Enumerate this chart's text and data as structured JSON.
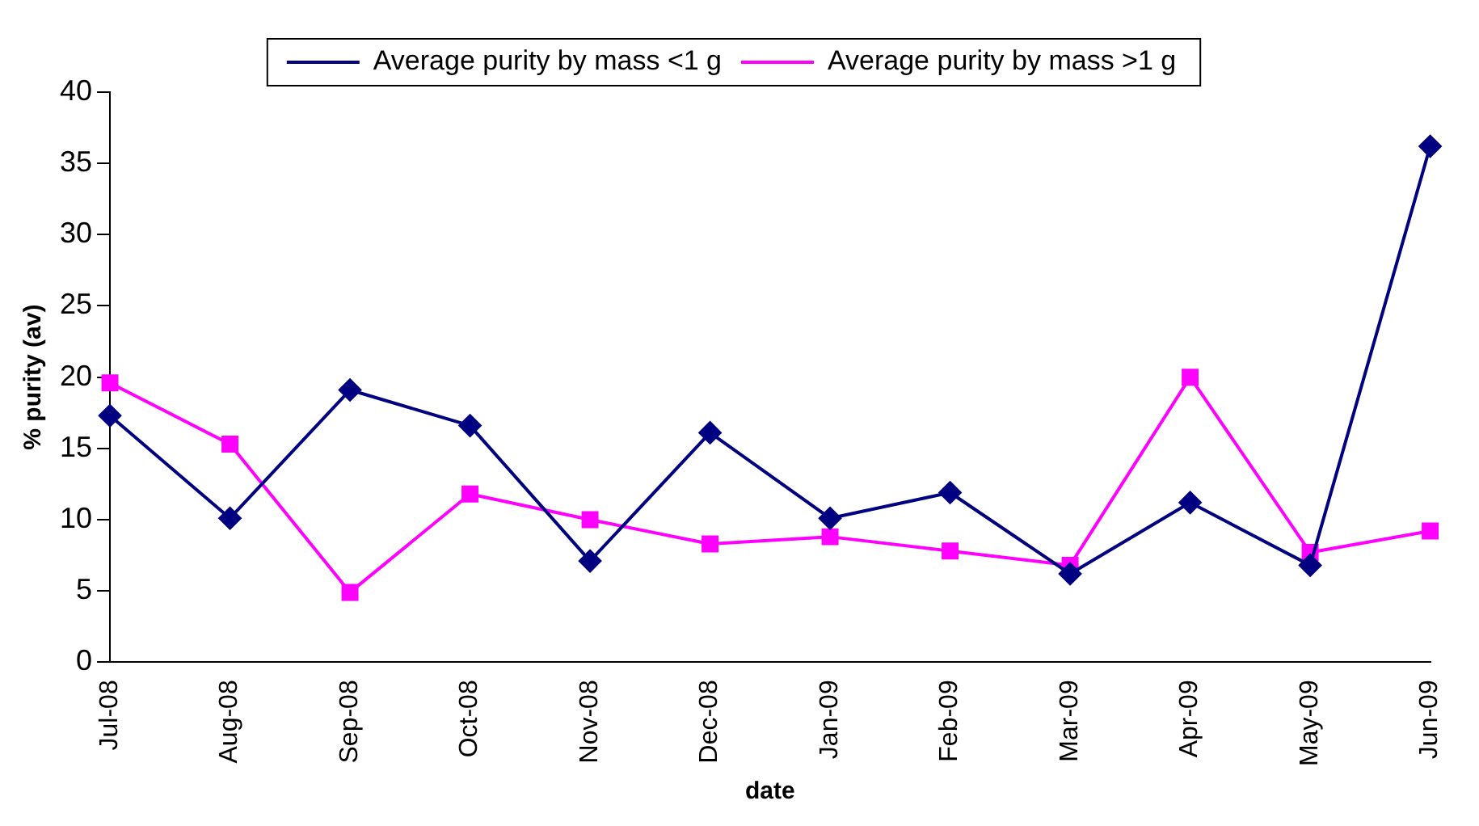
{
  "chart_data": {
    "type": "line",
    "xlabel": "date",
    "ylabel": "% purity (av)",
    "categories": [
      "Jul-08",
      "Aug-08",
      "Sep-08",
      "Oct-08",
      "Nov-08",
      "Dec-08",
      "Jan-09",
      "Feb-09",
      "Mar-09",
      "Apr-09",
      "May-09",
      "Jun-09"
    ],
    "series": [
      {
        "name": "Average purity by mass <1 g",
        "color": "#000080",
        "marker": "diamond",
        "values": [
          17.3,
          10.1,
          19.1,
          16.6,
          7.1,
          16.1,
          10.1,
          11.9,
          6.2,
          11.2,
          6.8,
          36.2
        ]
      },
      {
        "name": "Average purity by mass >1 g",
        "color": "#ff00ff",
        "marker": "square",
        "values": [
          19.6,
          15.3,
          4.9,
          11.8,
          10.0,
          8.3,
          8.8,
          7.8,
          6.8,
          20.0,
          7.7,
          9.2
        ]
      }
    ],
    "ylim": [
      0,
      40
    ],
    "yticks": [
      0,
      5,
      10,
      15,
      20,
      25,
      30,
      35,
      40
    ],
    "grid": false,
    "legend": "top",
    "line_style": "solid"
  }
}
